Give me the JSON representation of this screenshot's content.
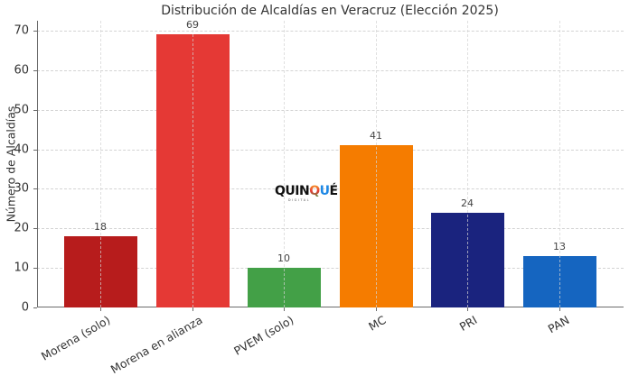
{
  "chart_data": {
    "type": "bar",
    "title": "Distribución de Alcaldías en Veracruz (Elección 2025)",
    "xlabel": "",
    "ylabel": "Número de Alcaldías",
    "ylim": [
      0,
      72
    ],
    "yticks": [
      "0",
      "10",
      "20",
      "30",
      "40",
      "50",
      "60",
      "70"
    ],
    "grid": true,
    "categories": [
      "Morena (solo)",
      "Morena en alianza",
      "PVEM (solo)",
      "MC",
      "PRI",
      "PAN"
    ],
    "values": [
      18,
      69,
      10,
      41,
      24,
      13
    ],
    "value_labels": [
      "18",
      "69",
      "10",
      "41",
      "24",
      "13"
    ],
    "colors": [
      "#B71C1C",
      "#E53935",
      "#43A047",
      "#F57C00",
      "#1A237E",
      "#1565C0"
    ]
  },
  "watermark": {
    "letters": [
      "Q",
      "U",
      "I",
      "N",
      "Q",
      "U",
      "É"
    ],
    "subtitle": "DIGITAL"
  }
}
